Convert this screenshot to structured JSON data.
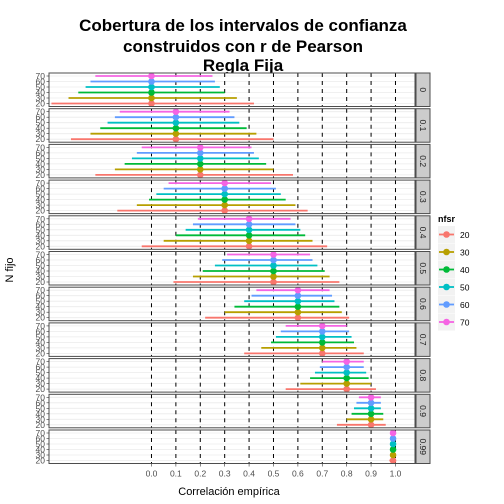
{
  "chart_data": {
    "type": "interval",
    "title_lines": [
      "Cobertura de los intervalos de confianza",
      "construidos con r de Pearson",
      "Regla Fija"
    ],
    "xlabel": "Correlación empírica",
    "ylabel": "N fijo",
    "xlim": [
      -0.42,
      1.08
    ],
    "x_ticks": [
      "0.0",
      "0.1",
      "0.2",
      "0.3",
      "0.4",
      "0.5",
      "0.6",
      "0.7",
      "0.8",
      "0.9",
      "1.0"
    ],
    "x_tick_values": [
      0,
      0.1,
      0.2,
      0.3,
      0.4,
      0.5,
      0.6,
      0.7,
      0.8,
      0.9,
      1.0
    ],
    "vlines": [
      0,
      0.1,
      0.2,
      0.3,
      0.4,
      0.5,
      0.6,
      0.7,
      0.8,
      0.9,
      1.0
    ],
    "y_categories": [
      "20",
      "30",
      "40",
      "50",
      "60",
      "70"
    ],
    "legend": {
      "title": "nfsr",
      "position": "right"
    },
    "series": [
      {
        "name": "20",
        "color": "#F8766D"
      },
      {
        "name": "30",
        "color": "#B79F00"
      },
      {
        "name": "40",
        "color": "#00BA38"
      },
      {
        "name": "50",
        "color": "#00BFC4"
      },
      {
        "name": "60",
        "color": "#619CFF"
      },
      {
        "name": "70",
        "color": "#F564E3"
      }
    ],
    "panels": [
      {
        "label": "0",
        "center": 0.0,
        "intervals": [
          {
            "n": "20",
            "lo": -0.41,
            "hi": 0.42
          },
          {
            "n": "30",
            "lo": -0.34,
            "hi": 0.35
          },
          {
            "n": "40",
            "lo": -0.3,
            "hi": 0.3
          },
          {
            "n": "50",
            "lo": -0.27,
            "hi": 0.28
          },
          {
            "n": "60",
            "lo": -0.25,
            "hi": 0.26
          },
          {
            "n": "70",
            "lo": -0.23,
            "hi": 0.25
          }
        ]
      },
      {
        "label": "0.1",
        "center": 0.1,
        "intervals": [
          {
            "n": "20",
            "lo": -0.33,
            "hi": 0.5
          },
          {
            "n": "30",
            "lo": -0.25,
            "hi": 0.43
          },
          {
            "n": "40",
            "lo": -0.21,
            "hi": 0.39
          },
          {
            "n": "50",
            "lo": -0.18,
            "hi": 0.36
          },
          {
            "n": "60",
            "lo": -0.15,
            "hi": 0.34
          },
          {
            "n": "70",
            "lo": -0.13,
            "hi": 0.32
          }
        ]
      },
      {
        "label": "0.2",
        "center": 0.2,
        "intervals": [
          {
            "n": "20",
            "lo": -0.23,
            "hi": 0.58
          },
          {
            "n": "30",
            "lo": -0.15,
            "hi": 0.5
          },
          {
            "n": "40",
            "lo": -0.11,
            "hi": 0.47
          },
          {
            "n": "50",
            "lo": -0.08,
            "hi": 0.44
          },
          {
            "n": "60",
            "lo": -0.06,
            "hi": 0.42
          },
          {
            "n": "70",
            "lo": -0.04,
            "hi": 0.41
          }
        ]
      },
      {
        "label": "0.3",
        "center": 0.3,
        "intervals": [
          {
            "n": "20",
            "lo": -0.14,
            "hi": 0.64
          },
          {
            "n": "30",
            "lo": -0.06,
            "hi": 0.59
          },
          {
            "n": "40",
            "lo": -0.01,
            "hi": 0.55
          },
          {
            "n": "50",
            "lo": 0.02,
            "hi": 0.53
          },
          {
            "n": "60",
            "lo": 0.05,
            "hi": 0.51
          },
          {
            "n": "70",
            "lo": 0.07,
            "hi": 0.49
          }
        ]
      },
      {
        "label": "0.4",
        "center": 0.4,
        "intervals": [
          {
            "n": "20",
            "lo": -0.04,
            "hi": 0.72
          },
          {
            "n": "30",
            "lo": 0.05,
            "hi": 0.66
          },
          {
            "n": "40",
            "lo": 0.1,
            "hi": 0.63
          },
          {
            "n": "50",
            "lo": 0.14,
            "hi": 0.61
          },
          {
            "n": "60",
            "lo": 0.17,
            "hi": 0.59
          },
          {
            "n": "70",
            "lo": 0.19,
            "hi": 0.57
          }
        ]
      },
      {
        "label": "0.5",
        "center": 0.5,
        "intervals": [
          {
            "n": "20",
            "lo": 0.09,
            "hi": 0.77
          },
          {
            "n": "30",
            "lo": 0.17,
            "hi": 0.73
          },
          {
            "n": "40",
            "lo": 0.21,
            "hi": 0.71
          },
          {
            "n": "50",
            "lo": 0.26,
            "hi": 0.68
          },
          {
            "n": "60",
            "lo": 0.29,
            "hi": 0.66
          },
          {
            "n": "70",
            "lo": 0.31,
            "hi": 0.65
          }
        ]
      },
      {
        "label": "0.6",
        "center": 0.6,
        "intervals": [
          {
            "n": "20",
            "lo": 0.22,
            "hi": 0.81
          },
          {
            "n": "30",
            "lo": 0.3,
            "hi": 0.78
          },
          {
            "n": "40",
            "lo": 0.34,
            "hi": 0.77
          },
          {
            "n": "50",
            "lo": 0.38,
            "hi": 0.75
          },
          {
            "n": "60",
            "lo": 0.41,
            "hi": 0.74
          },
          {
            "n": "70",
            "lo": 0.43,
            "hi": 0.73
          }
        ]
      },
      {
        "label": "0.7",
        "center": 0.7,
        "intervals": [
          {
            "n": "20",
            "lo": 0.38,
            "hi": 0.87
          },
          {
            "n": "30",
            "lo": 0.45,
            "hi": 0.84
          },
          {
            "n": "40",
            "lo": 0.49,
            "hi": 0.83
          },
          {
            "n": "50",
            "lo": 0.51,
            "hi": 0.82
          },
          {
            "n": "60",
            "lo": 0.53,
            "hi": 0.81
          },
          {
            "n": "70",
            "lo": 0.55,
            "hi": 0.8
          }
        ]
      },
      {
        "label": "0.8",
        "center": 0.8,
        "intervals": [
          {
            "n": "20",
            "lo": 0.55,
            "hi": 0.92
          },
          {
            "n": "30",
            "lo": 0.61,
            "hi": 0.9
          },
          {
            "n": "40",
            "lo": 0.65,
            "hi": 0.89
          },
          {
            "n": "50",
            "lo": 0.67,
            "hi": 0.88
          },
          {
            "n": "60",
            "lo": 0.69,
            "hi": 0.87
          },
          {
            "n": "70",
            "lo": 0.7,
            "hi": 0.87
          }
        ]
      },
      {
        "label": "0.9",
        "center": 0.9,
        "intervals": [
          {
            "n": "20",
            "lo": 0.76,
            "hi": 0.96
          },
          {
            "n": "30",
            "lo": 0.8,
            "hi": 0.95
          },
          {
            "n": "40",
            "lo": 0.82,
            "hi": 0.95
          },
          {
            "n": "50",
            "lo": 0.83,
            "hi": 0.94
          },
          {
            "n": "60",
            "lo": 0.84,
            "hi": 0.94
          },
          {
            "n": "70",
            "lo": 0.85,
            "hi": 0.94
          }
        ]
      },
      {
        "label": "0.99",
        "center": 0.99,
        "intervals": [
          {
            "n": "20",
            "lo": 0.975,
            "hi": 0.996
          },
          {
            "n": "30",
            "lo": 0.979,
            "hi": 0.995
          },
          {
            "n": "40",
            "lo": 0.981,
            "hi": 0.995
          },
          {
            "n": "50",
            "lo": 0.982,
            "hi": 0.994
          },
          {
            "n": "60",
            "lo": 0.983,
            "hi": 0.994
          },
          {
            "n": "70",
            "lo": 0.984,
            "hi": 0.994
          }
        ]
      }
    ]
  }
}
